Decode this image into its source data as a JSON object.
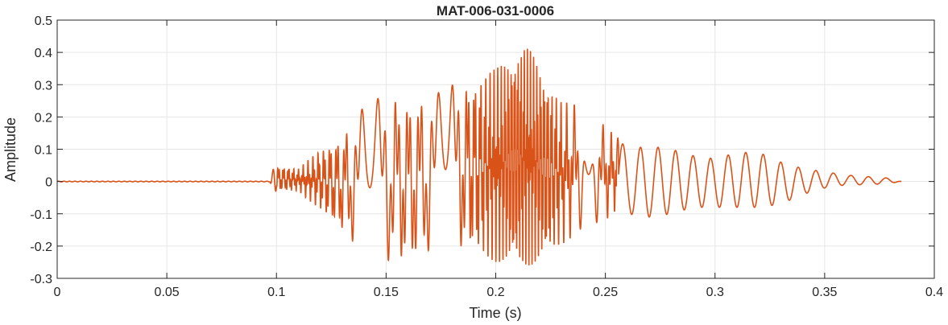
{
  "chart_data": {
    "type": "line",
    "title": "MAT-006-031-0006",
    "xlabel": "Time (s)",
    "ylabel": "Amplitude",
    "xlim": [
      0,
      0.4
    ],
    "ylim": [
      -0.3,
      0.5
    ],
    "xticks": [
      0,
      0.05,
      0.1,
      0.15,
      0.2,
      0.25,
      0.3,
      0.35,
      0.4
    ],
    "xtick_labels": [
      "0",
      "0.05",
      "0.1",
      "0.15",
      "0.2",
      "0.25",
      "0.3",
      "0.35",
      "0.4"
    ],
    "yticks": [
      -0.3,
      -0.2,
      -0.1,
      0,
      0.1,
      0.2,
      0.3,
      0.4,
      0.5
    ],
    "ytick_labels": [
      "-0.3",
      "-0.2",
      "-0.1",
      "0",
      "0.1",
      "0.2",
      "0.3",
      "0.4",
      "0.5"
    ],
    "grid": true,
    "color": "#D95319",
    "series": [
      {
        "envelope": [
          {
            "t": 0.0,
            "max": 0.002,
            "min": -0.002
          },
          {
            "t": 0.097,
            "max": 0.002,
            "min": -0.002
          },
          {
            "t": 0.099,
            "max": 0.05,
            "min": -0.03
          },
          {
            "t": 0.11,
            "max": 0.04,
            "min": -0.03
          },
          {
            "t": 0.12,
            "max": 0.1,
            "min": -0.09
          },
          {
            "t": 0.13,
            "max": 0.15,
            "min": -0.17
          },
          {
            "t": 0.14,
            "max": 0.25,
            "min": -0.24
          },
          {
            "t": 0.15,
            "max": 0.29,
            "min": -0.27
          },
          {
            "t": 0.16,
            "max": 0.27,
            "min": -0.28
          },
          {
            "t": 0.17,
            "max": 0.29,
            "min": -0.25
          },
          {
            "t": 0.18,
            "max": 0.33,
            "min": -0.24
          },
          {
            "t": 0.19,
            "max": 0.33,
            "min": -0.24
          },
          {
            "t": 0.2,
            "max": 0.35,
            "min": -0.25
          },
          {
            "t": 0.21,
            "max": 0.41,
            "min": -0.27
          },
          {
            "t": 0.215,
            "max": 0.42,
            "min": -0.26
          },
          {
            "t": 0.22,
            "max": 0.36,
            "min": -0.26
          },
          {
            "t": 0.23,
            "max": 0.25,
            "min": -0.2
          },
          {
            "t": 0.24,
            "max": 0.23,
            "min": -0.14
          },
          {
            "t": 0.25,
            "max": 0.17,
            "min": -0.12
          },
          {
            "t": 0.255,
            "max": 0.14,
            "min": -0.09
          },
          {
            "t": 0.26,
            "max": 0.1,
            "min": -0.1
          },
          {
            "t": 0.27,
            "max": 0.11,
            "min": -0.11
          },
          {
            "t": 0.28,
            "max": 0.1,
            "min": -0.1
          },
          {
            "t": 0.29,
            "max": 0.08,
            "min": -0.08
          },
          {
            "t": 0.3,
            "max": 0.07,
            "min": -0.08
          },
          {
            "t": 0.31,
            "max": 0.09,
            "min": -0.08
          },
          {
            "t": 0.32,
            "max": 0.09,
            "min": -0.08
          },
          {
            "t": 0.33,
            "max": 0.06,
            "min": -0.07
          },
          {
            "t": 0.34,
            "max": 0.04,
            "min": -0.04
          },
          {
            "t": 0.35,
            "max": 0.03,
            "min": -0.02
          },
          {
            "t": 0.36,
            "max": 0.02,
            "min": -0.01
          },
          {
            "t": 0.37,
            "max": 0.015,
            "min": -0.01
          },
          {
            "t": 0.38,
            "max": 0.01,
            "min": -0.005
          },
          {
            "t": 0.385,
            "max": 0.0,
            "min": 0.0
          }
        ]
      }
    ]
  }
}
